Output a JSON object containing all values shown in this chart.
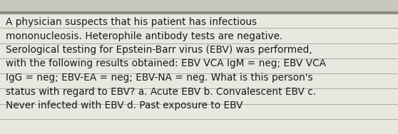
{
  "text": "A physician suspects that his patient has infectious\nmononucleosis. Heterophile antibody tests are negative.\nSerological testing for Epstein-Barr virus (EBV) was performed,\nwith the following results obtained: EBV VCA IgM = neg; EBV VCA\nIgG = neg; EBV-EA = neg; EBV-NA = neg. What is this person's\nstatus with regard to EBV? a. Acute EBV b. Convalescent EBV c.\nNever infected with EBV d. Past exposure to EBV",
  "bg_color": "#c8c8c0",
  "text_bg_color": "#e8e8e0",
  "text_color": "#1a1a1a",
  "line_color": "#a0a098",
  "dark_line_color": "#888880",
  "font_size": 9.8,
  "fig_width": 5.58,
  "fig_height": 1.88,
  "dpi": 100
}
